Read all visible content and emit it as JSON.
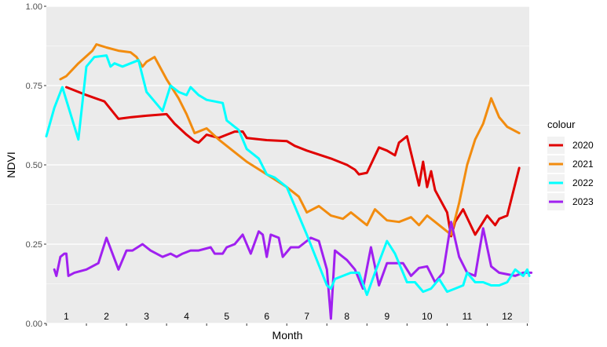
{
  "chart_data": {
    "type": "line",
    "xlabel": "Month",
    "ylabel": "NDVI",
    "ylim": [
      0,
      1
    ],
    "yticks": [
      0,
      0.25,
      0.5,
      0.75,
      1
    ],
    "ytick_labels": [
      "0.00",
      "0.25",
      "0.50",
      "0.75",
      "1.00"
    ],
    "xlim": [
      0.5,
      12.55
    ],
    "xtick_labels": [
      "1",
      "2",
      "3",
      "4",
      "5",
      "6",
      "7",
      "8",
      "9",
      "10",
      "11",
      "12"
    ],
    "legend_title": "colour",
    "legend_position": "right",
    "grid": true,
    "series": [
      {
        "name": "2020",
        "color": "#e00000",
        "x": [
          1.0,
          1.5,
          1.95,
          2.3,
          2.6,
          3.0,
          3.5,
          3.7,
          4.0,
          4.2,
          4.3,
          4.5,
          4.8,
          5.0,
          5.2,
          5.4,
          5.5,
          6.0,
          6.5,
          6.7,
          7.0,
          7.6,
          8.0,
          8.2,
          8.3,
          8.5,
          8.8,
          9.0,
          9.2,
          9.3,
          9.5,
          9.8,
          9.9,
          10.0,
          10.1,
          10.2,
          10.5,
          10.6,
          10.7,
          10.9,
          11.2,
          11.5,
          11.7,
          11.8,
          12.0,
          12.3
        ],
        "y": [
          0.745,
          0.72,
          0.7,
          0.645,
          0.65,
          0.655,
          0.66,
          0.63,
          0.595,
          0.575,
          0.57,
          0.595,
          0.585,
          0.595,
          0.605,
          0.605,
          0.585,
          0.578,
          0.575,
          0.56,
          0.545,
          0.52,
          0.5,
          0.485,
          0.47,
          0.475,
          0.555,
          0.545,
          0.53,
          0.57,
          0.59,
          0.435,
          0.51,
          0.43,
          0.48,
          0.42,
          0.35,
          0.275,
          0.32,
          0.36,
          0.28,
          0.34,
          0.31,
          0.33,
          0.34,
          0.49
        ]
      },
      {
        "name": "2021",
        "color": "#f28c0f",
        "x": [
          0.85,
          1.0,
          1.3,
          1.65,
          1.75,
          2.0,
          2.3,
          2.6,
          2.75,
          2.9,
          3.0,
          3.2,
          3.5,
          3.8,
          4.0,
          4.2,
          4.5,
          4.8,
          5.0,
          5.3,
          5.5,
          6.0,
          6.5,
          6.8,
          7.0,
          7.3,
          7.6,
          7.9,
          8.1,
          8.3,
          8.5,
          8.7,
          9.0,
          9.3,
          9.6,
          9.8,
          10.0,
          10.2,
          10.4,
          10.6,
          10.8,
          11.0,
          11.2,
          11.4,
          11.6,
          11.8,
          12.0,
          12.3
        ],
        "y": [
          0.77,
          0.78,
          0.82,
          0.86,
          0.88,
          0.87,
          0.86,
          0.855,
          0.84,
          0.81,
          0.825,
          0.84,
          0.77,
          0.71,
          0.66,
          0.6,
          0.615,
          0.58,
          0.56,
          0.53,
          0.51,
          0.47,
          0.43,
          0.4,
          0.35,
          0.37,
          0.34,
          0.33,
          0.35,
          0.33,
          0.31,
          0.36,
          0.325,
          0.32,
          0.335,
          0.31,
          0.34,
          0.32,
          0.3,
          0.28,
          0.38,
          0.5,
          0.58,
          0.63,
          0.71,
          0.65,
          0.62,
          0.6
        ]
      },
      {
        "name": "2023",
        "color": "#a020f0",
        "x": [
          0.7,
          0.75,
          0.85,
          0.95,
          1.0,
          1.05,
          1.2,
          1.5,
          1.8,
          2.0,
          2.3,
          2.5,
          2.65,
          2.9,
          3.1,
          3.4,
          3.6,
          3.75,
          3.9,
          4.1,
          4.3,
          4.6,
          4.7,
          4.9,
          5.0,
          5.2,
          5.4,
          5.6,
          5.8,
          5.9,
          6.0,
          6.1,
          6.3,
          6.4,
          6.6,
          6.8,
          7.0,
          7.1,
          7.3,
          7.5,
          7.6,
          7.7,
          7.9,
          8.0,
          8.2,
          8.4,
          8.6,
          8.8,
          9.0,
          9.2,
          9.4,
          9.6,
          9.8,
          10.0,
          10.2,
          10.4,
          10.6,
          10.8,
          11.0,
          11.2,
          11.4,
          11.6,
          11.8,
          12.0,
          12.2,
          12.4,
          12.6
        ],
        "y": [
          0.17,
          0.15,
          0.21,
          0.22,
          0.22,
          0.15,
          0.16,
          0.17,
          0.19,
          0.27,
          0.17,
          0.23,
          0.23,
          0.25,
          0.23,
          0.21,
          0.22,
          0.21,
          0.22,
          0.23,
          0.23,
          0.24,
          0.22,
          0.22,
          0.24,
          0.25,
          0.28,
          0.22,
          0.29,
          0.28,
          0.21,
          0.28,
          0.27,
          0.21,
          0.24,
          0.24,
          0.26,
          0.27,
          0.26,
          0.17,
          0.015,
          0.23,
          0.21,
          0.2,
          0.17,
          0.11,
          0.24,
          0.12,
          0.19,
          0.19,
          0.19,
          0.15,
          0.175,
          0.18,
          0.13,
          0.16,
          0.32,
          0.21,
          0.16,
          0.15,
          0.3,
          0.18,
          0.16,
          0.155,
          0.15,
          0.16,
          0.16
        ]
      },
      {
        "name": "2022",
        "color": "#00ffff",
        "x": [
          0.5,
          0.7,
          0.9,
          1.3,
          1.5,
          1.7,
          2.0,
          2.1,
          2.2,
          2.4,
          2.6,
          2.8,
          3.0,
          3.2,
          3.4,
          3.6,
          3.8,
          4.0,
          4.1,
          4.3,
          4.5,
          4.7,
          4.9,
          5.0,
          5.1,
          5.3,
          5.5,
          5.8,
          6.0,
          6.2,
          6.5,
          7.0,
          7.5,
          7.6,
          7.7,
          7.9,
          8.1,
          8.3,
          8.5,
          8.7,
          9.0,
          9.2,
          9.5,
          9.7,
          9.9,
          10.1,
          10.3,
          10.5,
          10.7,
          10.9,
          11.0,
          11.2,
          11.4,
          11.6,
          11.8,
          12.0,
          12.2,
          12.4,
          12.5,
          12.55
        ],
        "y": [
          0.59,
          0.68,
          0.745,
          0.58,
          0.81,
          0.84,
          0.845,
          0.81,
          0.82,
          0.81,
          0.82,
          0.83,
          0.73,
          0.7,
          0.67,
          0.75,
          0.73,
          0.72,
          0.745,
          0.72,
          0.705,
          0.7,
          0.695,
          0.64,
          0.63,
          0.61,
          0.55,
          0.52,
          0.47,
          0.46,
          0.43,
          0.28,
          0.12,
          0.11,
          0.14,
          0.15,
          0.16,
          0.16,
          0.09,
          0.16,
          0.26,
          0.22,
          0.13,
          0.13,
          0.1,
          0.11,
          0.14,
          0.1,
          0.11,
          0.12,
          0.16,
          0.13,
          0.13,
          0.12,
          0.12,
          0.13,
          0.17,
          0.15,
          0.17,
          0.15
        ]
      }
    ]
  }
}
